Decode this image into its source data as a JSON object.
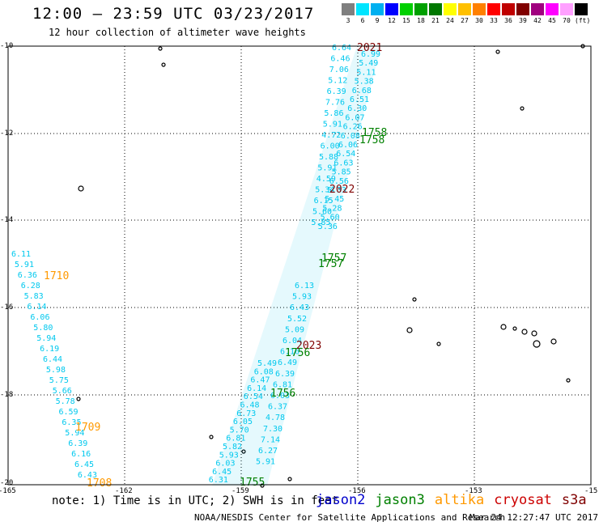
{
  "title": "12:00 – 23:59 UTC 03/23/2017",
  "subtitle": "12 hour collection of altimeter wave heights",
  "legend": {
    "unit": "(ft)",
    "items": [
      {
        "label": "3",
        "color": "#7f7f7f"
      },
      {
        "label": "6",
        "color": "#00e5ff"
      },
      {
        "label": "9",
        "color": "#00b0f0"
      },
      {
        "label": "12",
        "color": "#0000ff"
      },
      {
        "label": "15",
        "color": "#00d000"
      },
      {
        "label": "18",
        "color": "#00a000"
      },
      {
        "label": "21",
        "color": "#007800"
      },
      {
        "label": "24",
        "color": "#ffff00"
      },
      {
        "label": "27",
        "color": "#ffc000"
      },
      {
        "label": "30",
        "color": "#ff8000"
      },
      {
        "label": "33",
        "color": "#ff0000"
      },
      {
        "label": "36",
        "color": "#c00000"
      },
      {
        "label": "39",
        "color": "#800000"
      },
      {
        "label": "42",
        "color": "#a0007f"
      },
      {
        "label": "45",
        "color": "#ff00ff"
      },
      {
        "label": "70",
        "color": "#ffa0ff"
      },
      {
        "label": "",
        "color": "#000000"
      }
    ]
  },
  "axes": {
    "lat_labels": [
      "-10",
      "-12",
      "-14",
      "-16",
      "-18",
      "-20"
    ],
    "lon_labels": [
      "-165",
      "-162",
      "-159",
      "-156",
      "-153",
      "-15"
    ]
  },
  "track_values": {
    "left_track": [
      "6.11",
      "5.91",
      "6.36",
      "6.28",
      "5.83",
      "6.14",
      "6.06",
      "5.80",
      "5.94",
      "6.19",
      "6.44",
      "5.98",
      "5.75",
      "5.66",
      "5.78",
      "6.59",
      "6.35",
      "5.94",
      "6.39",
      "6.16",
      "6.45",
      "6.43"
    ],
    "east_track_a": [
      "6.64",
      "6.46",
      "7.06",
      "5.12",
      "6.39",
      "7.76",
      "5.86",
      "5.91",
      "4.72",
      "6.00",
      "5.88",
      "5.91",
      "4.59",
      "5.34",
      "6.15",
      "5.60",
      "5.85"
    ],
    "east_track_b": [
      "6.99",
      "5.49",
      "5.11",
      "5.38",
      "6.68",
      "6.51",
      "6.30",
      "6.07",
      "6.26",
      "6.08",
      "6.06",
      "6.54",
      "6.63",
      "5.85",
      "6.56",
      "5.33",
      "5.45",
      "5.28",
      "5.60",
      "5.36"
    ],
    "mid_track": [
      "6.13",
      "5.93",
      "6.43",
      "5.52",
      "5.09",
      "6.04",
      "6.16",
      "6.49",
      "6.39",
      "6.81",
      "6.03",
      "6.37",
      "4.78",
      "7.30",
      "7.14",
      "6.27",
      "5.91"
    ],
    "south_track": [
      "5.49",
      "6.08",
      "6.47",
      "6.14",
      "6.54",
      "6.48",
      "6.73",
      "6.05",
      "5.70",
      "6.81",
      "5.82",
      "5.93",
      "6.03",
      "6.45",
      "6.31"
    ]
  },
  "time_labels": [
    {
      "text": "2021",
      "color": "#800000"
    },
    {
      "text": "1758",
      "color": "#008000"
    },
    {
      "text": "1758",
      "color": "#008000"
    },
    {
      "text": "2022",
      "color": "#800000"
    },
    {
      "text": "1757",
      "color": "#008000"
    },
    {
      "text": "1757",
      "color": "#008000"
    },
    {
      "text": "1710",
      "color": "#ff9900"
    },
    {
      "text": "2023",
      "color": "#800000"
    },
    {
      "text": "1756",
      "color": "#008000"
    },
    {
      "text": "1756",
      "color": "#008000"
    },
    {
      "text": "1709",
      "color": "#ff9900"
    },
    {
      "text": "1708",
      "color": "#ff9900"
    },
    {
      "text": "1755",
      "color": "#008000"
    }
  ],
  "note": "note: 1) Time is in UTC; 2) SWH is in feet",
  "satellites": [
    {
      "name": "jason2",
      "color": "#0000cc"
    },
    {
      "name": "jason3",
      "color": "#008000"
    },
    {
      "name": "altika",
      "color": "#ff9900"
    },
    {
      "name": "cryosat",
      "color": "#cc0000"
    },
    {
      "name": "s3a",
      "color": "#800000"
    }
  ],
  "footer": "NOAA/NESDIS Center for Satellite Applications and Research",
  "footer_date": "Mar 24 12:27:47 UTC 2017"
}
